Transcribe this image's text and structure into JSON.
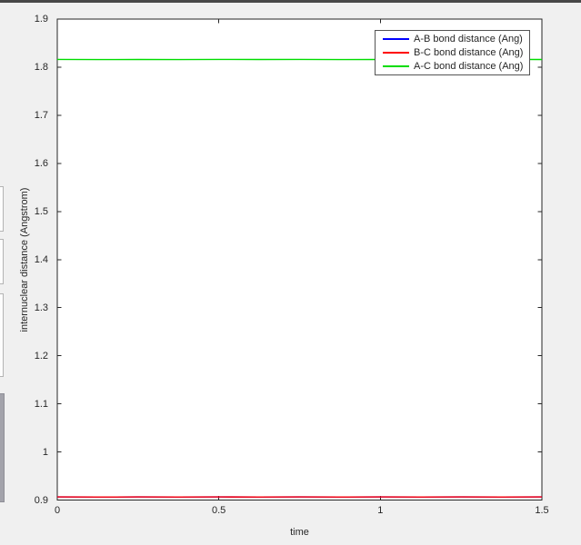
{
  "window": {
    "colors": {
      "figure_background": "#f0f0f0",
      "axes_background": "#ffffff",
      "axis": "#262626",
      "tick_label": "#262626",
      "top_bar": "#474747",
      "legend_border": "#545454"
    }
  },
  "chart_data": {
    "type": "line",
    "title": "",
    "xlabel": "time",
    "ylabel": "internuclear distance (Angstrom)",
    "xlim": [
      0,
      1.5
    ],
    "ylim": [
      0.9,
      1.9
    ],
    "grid": false,
    "legend_position": "top-right",
    "xtick_values": [
      0,
      0.5,
      1,
      1.5
    ],
    "xtick_labels": [
      "0",
      "0.5",
      "1",
      "1.5"
    ],
    "ytick_values": [
      0.9,
      1,
      1.1,
      1.2,
      1.3,
      1.4,
      1.5,
      1.6,
      1.7,
      1.8,
      1.9
    ],
    "ytick_labels": [
      "0.9",
      "1",
      "1.1",
      "1.2",
      "1.3",
      "1.4",
      "1.5",
      "1.6",
      "1.7",
      "1.8",
      "1.9"
    ],
    "x": [
      0,
      0.125,
      0.25,
      0.375,
      0.5,
      0.625,
      0.75,
      0.875,
      1,
      1.125,
      1.25,
      1.375,
      1.5
    ],
    "series": [
      {
        "name": "A-B bond distance (Ang)",
        "color": "#0000ff",
        "values": [
          0.9064,
          0.9062,
          0.9065,
          0.9063,
          0.9064,
          0.9062,
          0.9065,
          0.9063,
          0.9064,
          0.9062,
          0.9065,
          0.9063,
          0.9064
        ]
      },
      {
        "name": "B-C bond distance (Ang)",
        "color": "#ff0000",
        "values": [
          0.9065,
          0.9062,
          0.9064,
          0.9063,
          0.9065,
          0.9062,
          0.9064,
          0.9063,
          0.9065,
          0.9062,
          0.9064,
          0.9063,
          0.9064
        ]
      },
      {
        "name": "A-C bond distance (Ang)",
        "color": "#00dd00",
        "values": [
          1.8162,
          1.8157,
          1.816,
          1.8158,
          1.8161,
          1.8159,
          1.8162,
          1.8158,
          1.816,
          1.8162,
          1.8158,
          1.8161,
          1.816
        ]
      }
    ]
  }
}
